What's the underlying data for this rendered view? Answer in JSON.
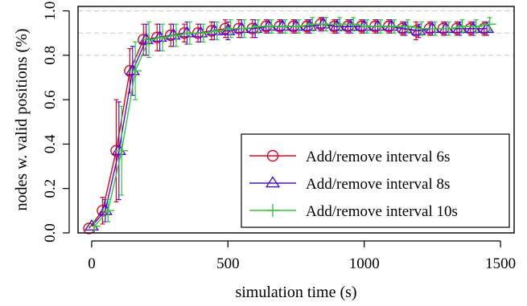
{
  "chart_data": {
    "type": "line",
    "title": "",
    "xlabel": "simulation time (s)",
    "ylabel": "nodes w. valid positions (%)",
    "xlim": [
      -50,
      1550
    ],
    "ylim": [
      0.0,
      1.02
    ],
    "xticks": [
      0,
      500,
      1000,
      1500
    ],
    "xtick_labels": [
      "0",
      "500",
      "1000",
      "1500"
    ],
    "yticks": [
      0.0,
      0.2,
      0.4,
      0.6,
      0.8,
      1.0
    ],
    "ytick_labels": [
      "0.0",
      "0.2",
      "0.4",
      "0.6",
      "0.8",
      "1.0"
    ],
    "reference_lines": [
      1.0,
      0.9,
      0.8
    ],
    "grid": false,
    "legend_position": "bottom-right",
    "error_bars": true,
    "series": [
      {
        "name": "Add/remove interval 6s",
        "color": "#e8001c",
        "marker": "circle",
        "x": [
          -10,
          40,
          90,
          140,
          190,
          240,
          290,
          340,
          390,
          440,
          490,
          540,
          590,
          640,
          690,
          740,
          790,
          840,
          890,
          940,
          990,
          1040,
          1090,
          1140,
          1190,
          1240,
          1290,
          1340,
          1390,
          1440
        ],
        "y": [
          0.02,
          0.1,
          0.37,
          0.73,
          0.87,
          0.88,
          0.89,
          0.9,
          0.9,
          0.91,
          0.92,
          0.92,
          0.92,
          0.93,
          0.93,
          0.93,
          0.93,
          0.94,
          0.93,
          0.93,
          0.93,
          0.93,
          0.93,
          0.92,
          0.91,
          0.92,
          0.92,
          0.92,
          0.92,
          0.92
        ],
        "err": [
          0.0,
          0.06,
          0.23,
          0.1,
          0.07,
          0.06,
          0.05,
          0.04,
          0.04,
          0.04,
          0.04,
          0.04,
          0.04,
          0.03,
          0.03,
          0.03,
          0.03,
          0.03,
          0.03,
          0.03,
          0.03,
          0.03,
          0.03,
          0.03,
          0.04,
          0.03,
          0.03,
          0.03,
          0.03,
          0.03
        ]
      },
      {
        "name": "Add/remove interval 8s",
        "color": "#4a10d8",
        "marker": "triangle",
        "x": [
          0,
          50,
          100,
          150,
          200,
          250,
          300,
          350,
          400,
          450,
          500,
          550,
          600,
          650,
          700,
          750,
          800,
          850,
          900,
          950,
          1000,
          1050,
          1100,
          1150,
          1200,
          1250,
          1300,
          1350,
          1400,
          1450
        ],
        "y": [
          0.03,
          0.1,
          0.37,
          0.73,
          0.87,
          0.88,
          0.89,
          0.9,
          0.9,
          0.91,
          0.91,
          0.92,
          0.92,
          0.93,
          0.93,
          0.93,
          0.93,
          0.94,
          0.93,
          0.93,
          0.93,
          0.93,
          0.93,
          0.92,
          0.91,
          0.92,
          0.92,
          0.92,
          0.92,
          0.92
        ],
        "err": [
          0.0,
          0.05,
          0.22,
          0.11,
          0.07,
          0.06,
          0.05,
          0.05,
          0.04,
          0.04,
          0.04,
          0.04,
          0.04,
          0.03,
          0.03,
          0.03,
          0.03,
          0.03,
          0.03,
          0.03,
          0.03,
          0.03,
          0.03,
          0.03,
          0.03,
          0.03,
          0.03,
          0.03,
          0.03,
          0.03
        ]
      },
      {
        "name": "Add/remove interval 10s",
        "color": "#2ec83a",
        "marker": "plus",
        "x": [
          10,
          60,
          110,
          160,
          210,
          260,
          310,
          360,
          410,
          460,
          510,
          560,
          610,
          660,
          710,
          760,
          810,
          860,
          910,
          960,
          1010,
          1060,
          1110,
          1160,
          1210,
          1260,
          1310,
          1360,
          1410,
          1460
        ],
        "y": [
          0.03,
          0.1,
          0.37,
          0.73,
          0.87,
          0.88,
          0.89,
          0.9,
          0.9,
          0.91,
          0.92,
          0.92,
          0.93,
          0.93,
          0.93,
          0.93,
          0.94,
          0.94,
          0.94,
          0.94,
          0.93,
          0.93,
          0.93,
          0.93,
          0.92,
          0.92,
          0.92,
          0.93,
          0.93,
          0.94
        ],
        "err": [
          0.0,
          0.05,
          0.2,
          0.13,
          0.08,
          0.06,
          0.05,
          0.05,
          0.04,
          0.04,
          0.04,
          0.04,
          0.03,
          0.03,
          0.03,
          0.03,
          0.03,
          0.03,
          0.03,
          0.03,
          0.03,
          0.03,
          0.03,
          0.03,
          0.03,
          0.03,
          0.03,
          0.03,
          0.03,
          0.03
        ]
      }
    ]
  }
}
